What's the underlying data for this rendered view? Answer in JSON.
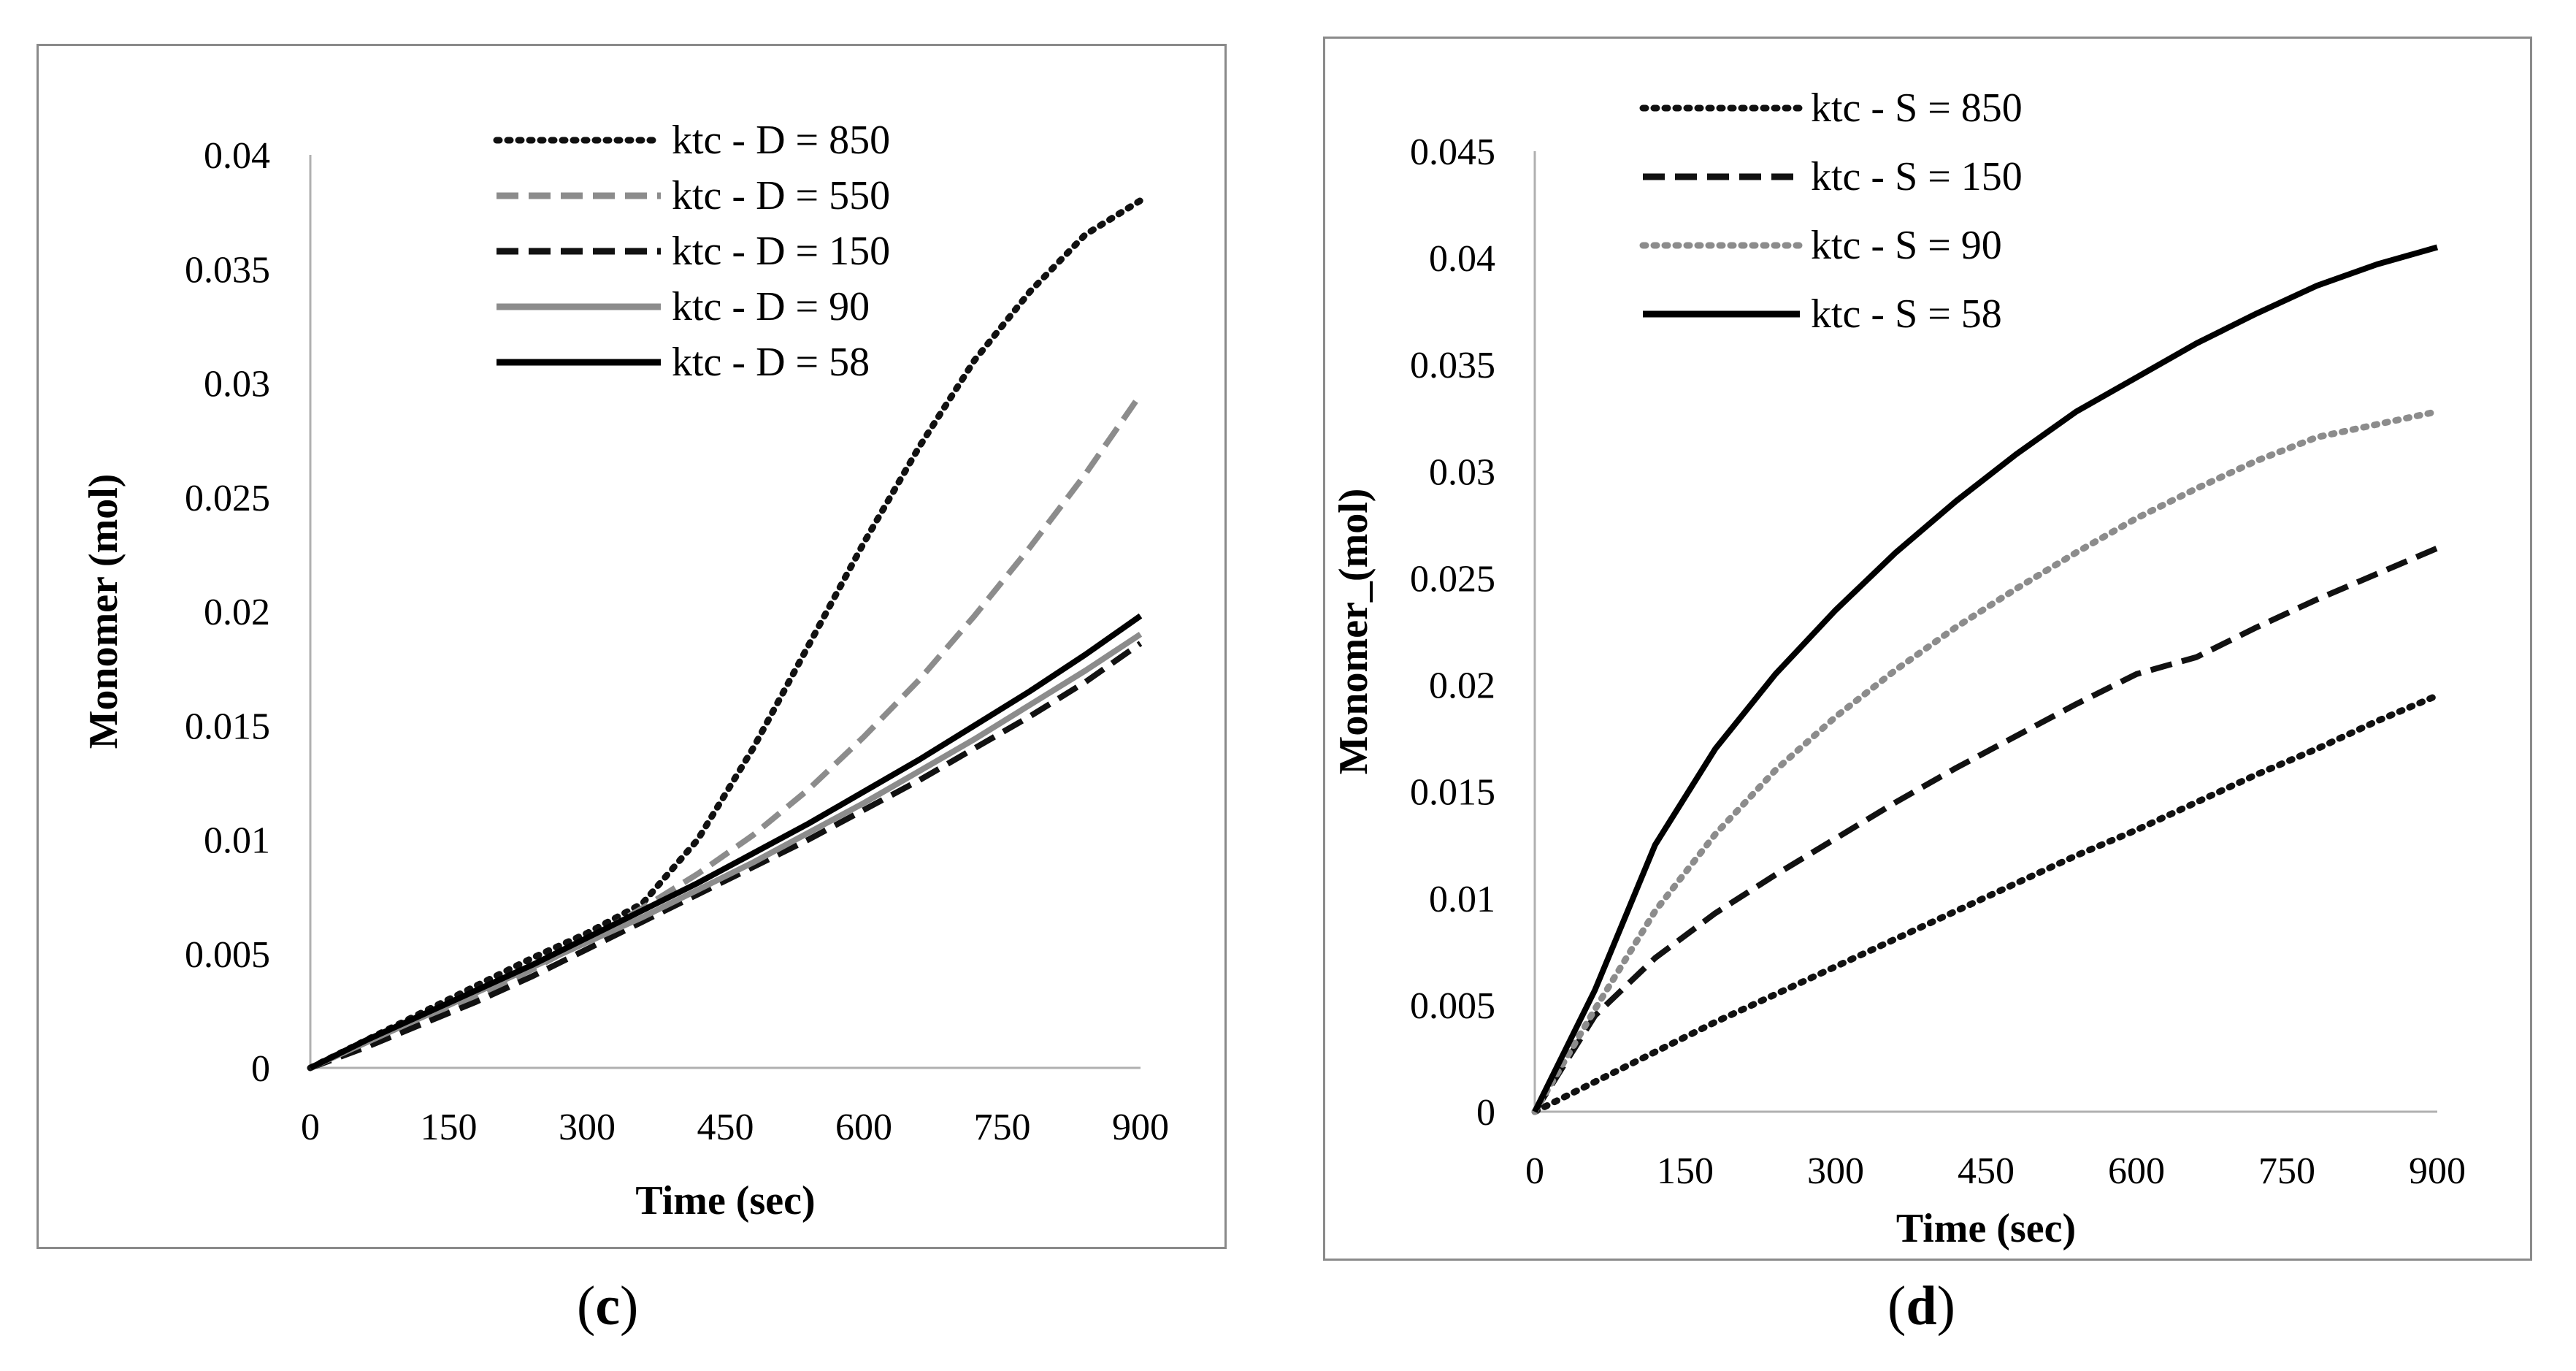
{
  "panel_labels": {
    "c": {
      "open": "(",
      "letter": "c",
      "close": ")"
    },
    "d": {
      "open": "(",
      "letter": "d",
      "close": ")"
    }
  },
  "chart_data": [
    {
      "id": "c",
      "type": "line",
      "title": "",
      "xlabel": "Time (sec)",
      "ylabel": "Monomer (mol)",
      "xlim": [
        0,
        900
      ],
      "ylim": [
        0,
        0.04
      ],
      "xticks": [
        0,
        150,
        300,
        450,
        600,
        750,
        900
      ],
      "yticks": [
        0,
        0.005,
        0.01,
        0.015,
        0.02,
        0.025,
        0.03,
        0.035,
        0.04
      ],
      "ytick_labels": [
        "0",
        "0.005",
        "0.01",
        "0.015",
        "0.02",
        "0.025",
        "0.03",
        "0.035",
        "0.04"
      ],
      "grid": false,
      "legend_position": "top-center",
      "x": [
        0,
        60,
        120,
        180,
        240,
        300,
        360,
        420,
        480,
        540,
        600,
        660,
        720,
        780,
        840,
        900
      ],
      "series": [
        {
          "name": "ktc - D = 850",
          "style": "dotted",
          "color": "#111111",
          "values": [
            0,
            0.0012,
            0.0024,
            0.0036,
            0.0048,
            0.0059,
            0.0072,
            0.01,
            0.014,
            0.0185,
            0.023,
            0.0272,
            0.031,
            0.034,
            0.0365,
            0.038
          ]
        },
        {
          "name": "ktc - D = 550",
          "style": "dashed",
          "color": "#8c8c8c",
          "values": [
            0,
            0.001,
            0.002,
            0.0031,
            0.0043,
            0.0056,
            0.007,
            0.0085,
            0.0102,
            0.0122,
            0.0145,
            0.017,
            0.0198,
            0.0228,
            0.026,
            0.0295
          ]
        },
        {
          "name": "ktc - D = 150",
          "style": "dashed",
          "color": "#111111",
          "values": [
            0,
            0.0009,
            0.0019,
            0.0029,
            0.004,
            0.0052,
            0.0064,
            0.0076,
            0.0088,
            0.01,
            0.0113,
            0.0126,
            0.014,
            0.0154,
            0.0169,
            0.0186
          ]
        },
        {
          "name": "ktc - D = 90",
          "style": "solid",
          "color": "#8c8c8c",
          "values": [
            0,
            0.0011,
            0.0022,
            0.0033,
            0.0044,
            0.0055,
            0.0066,
            0.0078,
            0.009,
            0.0103,
            0.0116,
            0.013,
            0.0144,
            0.0159,
            0.0174,
            0.019
          ]
        },
        {
          "name": "ktc - D = 58",
          "style": "solid",
          "color": "#000000",
          "values": [
            0,
            0.0012,
            0.0023,
            0.0034,
            0.0045,
            0.0057,
            0.0069,
            0.0081,
            0.0094,
            0.0107,
            0.0121,
            0.0135,
            0.015,
            0.0165,
            0.0181,
            0.0198
          ]
        }
      ]
    },
    {
      "id": "d",
      "type": "line",
      "title": "",
      "xlabel": "Time (sec)",
      "ylabel": "Monomer_(mol)",
      "xlim": [
        0,
        900
      ],
      "ylim": [
        0,
        0.045
      ],
      "xticks": [
        0,
        150,
        300,
        450,
        600,
        750,
        900
      ],
      "yticks": [
        0,
        0.005,
        0.01,
        0.015,
        0.02,
        0.025,
        0.03,
        0.035,
        0.04,
        0.045
      ],
      "ytick_labels": [
        "0",
        "0.005",
        "0.01",
        "0.015",
        "0.02",
        "0.025",
        "0.03",
        "0.035",
        "0.04",
        "0.045"
      ],
      "grid": false,
      "legend_position": "top-left",
      "x": [
        0,
        60,
        120,
        180,
        240,
        300,
        360,
        420,
        480,
        540,
        600,
        660,
        720,
        780,
        840,
        900
      ],
      "series": [
        {
          "name": "ktc - S = 850",
          "style": "dotted",
          "color": "#111111",
          "values": [
            0,
            0.0014,
            0.0028,
            0.0042,
            0.0055,
            0.0068,
            0.0081,
            0.0094,
            0.0107,
            0.012,
            0.0132,
            0.0145,
            0.0158,
            0.017,
            0.0183,
            0.0195
          ]
        },
        {
          "name": "ktc - S = 150",
          "style": "dashed",
          "color": "#111111",
          "values": [
            0,
            0.0045,
            0.0072,
            0.0093,
            0.0111,
            0.0128,
            0.0145,
            0.0161,
            0.0176,
            0.0191,
            0.0205,
            0.0213,
            0.0227,
            0.024,
            0.0252,
            0.0264
          ]
        },
        {
          "name": "ktc - S = 90",
          "style": "dotted",
          "color": "#8c8c8c",
          "values": [
            0,
            0.0048,
            0.0094,
            0.013,
            0.016,
            0.0185,
            0.0207,
            0.0227,
            0.0245,
            0.0262,
            0.0278,
            0.0292,
            0.0305,
            0.0316,
            0.0322,
            0.0328
          ]
        },
        {
          "name": "ktc - S = 58",
          "style": "solid",
          "color": "#000000",
          "values": [
            0,
            0.0057,
            0.0125,
            0.017,
            0.0205,
            0.0235,
            0.0262,
            0.0286,
            0.0308,
            0.0328,
            0.0344,
            0.036,
            0.0374,
            0.0387,
            0.0397,
            0.0405
          ]
        }
      ]
    }
  ]
}
